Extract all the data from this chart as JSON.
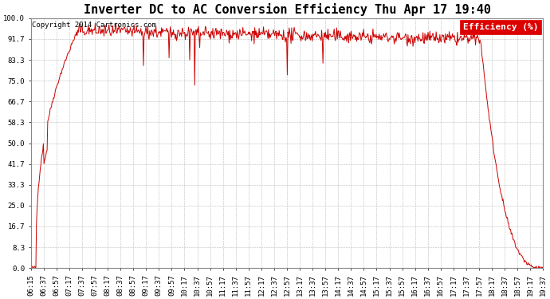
{
  "title": "Inverter DC to AC Conversion Efficiency Thu Apr 17 19:40",
  "copyright": "Copyright 2014 Cartronics.com",
  "legend_label": "Efficiency (%)",
  "legend_bg": "#dd0000",
  "legend_text_color": "#ffffff",
  "line_color": "#cc0000",
  "background_color": "#ffffff",
  "grid_color": "#aaaaaa",
  "ylabel_values": [
    0.0,
    8.3,
    16.7,
    25.0,
    33.3,
    41.7,
    50.0,
    58.3,
    66.7,
    75.0,
    83.3,
    91.7,
    100.0
  ],
  "ylim": [
    0.0,
    100.0
  ],
  "x_tick_labels": [
    "06:15",
    "06:37",
    "06:57",
    "07:17",
    "07:37",
    "07:57",
    "08:17",
    "08:37",
    "08:57",
    "09:17",
    "09:37",
    "09:57",
    "10:17",
    "10:37",
    "10:57",
    "11:17",
    "11:37",
    "11:57",
    "12:17",
    "12:37",
    "12:57",
    "13:17",
    "13:37",
    "13:57",
    "14:17",
    "14:37",
    "14:57",
    "15:17",
    "15:37",
    "15:57",
    "16:17",
    "16:37",
    "16:57",
    "17:17",
    "17:37",
    "17:57",
    "18:17",
    "18:37",
    "18:57",
    "19:17",
    "19:37"
  ],
  "title_fontsize": 11,
  "copyright_fontsize": 6.5,
  "tick_fontsize": 6.5,
  "legend_fontsize": 8
}
